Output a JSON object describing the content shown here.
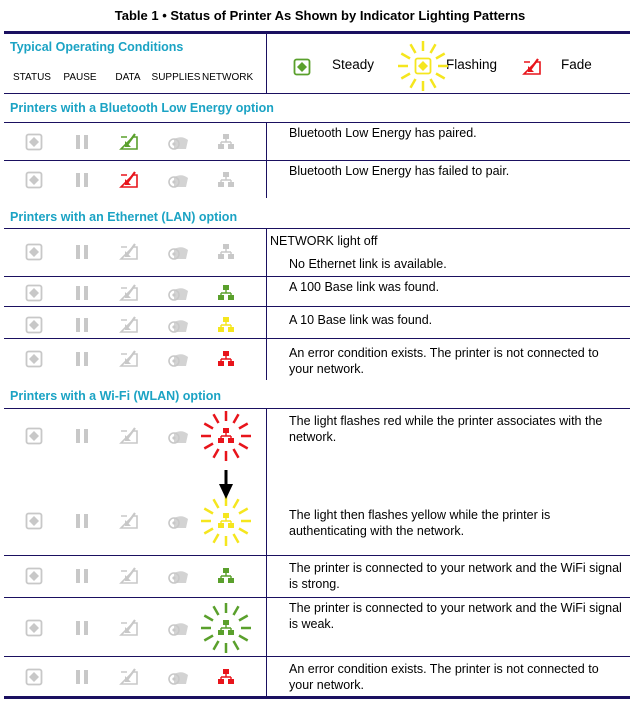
{
  "title": "Table 1 • Status of Printer As Shown by Indicator Lighting Patterns",
  "typical": {
    "heading": "Typical Operating Conditions",
    "columns": [
      "STATUS",
      "PAUSE",
      "DATA",
      "SUPPLIES",
      "NETWORK"
    ],
    "legend": [
      {
        "label": "Steady",
        "icon": "status-icon",
        "color": "#5aa02c",
        "flash": false
      },
      {
        "label": "Flashing",
        "icon": "status-icon",
        "color": "#f5e61e",
        "flash": true
      },
      {
        "label": "Fade",
        "icon": "data-icon",
        "color": "#e8141b",
        "flash": false
      }
    ]
  },
  "colors": {
    "off": "#c8c8c8",
    "green": "#5aa02c",
    "red": "#e8141b",
    "yellow": "#f5e61e",
    "accent": "#1ba3c4",
    "rule": "#1a1060"
  },
  "sections": [
    {
      "heading": "Printers with a Bluetooth Low Energy option"
    },
    {
      "heading": "Printers with an Ethernet (LAN) option"
    },
    {
      "heading": "Printers with a Wi-Fi (WLAN) option"
    }
  ],
  "rows": [
    {
      "data": "green",
      "network": "off",
      "flash": false,
      "text": "Bluetooth Low Energy has paired."
    },
    {
      "data": "red",
      "network": "off",
      "flash": false,
      "text": "Bluetooth Low Energy has failed to pair."
    },
    {
      "data": "off",
      "network": "off",
      "flash": false,
      "label": "NETWORK light off",
      "text": "No Ethernet link is available."
    },
    {
      "data": "off",
      "network": "green",
      "flash": false,
      "text": "A 100 Base link was found."
    },
    {
      "data": "off",
      "network": "yellow",
      "flash": false,
      "text": "A 10 Base link was found."
    },
    {
      "data": "off",
      "network": "red",
      "flash": false,
      "text": "An error condition exists. The printer is not connected to your network."
    },
    {
      "data": "off",
      "network": "red",
      "flash": true,
      "text": "The light flashes red while the printer associates with the network."
    },
    {
      "data": "off",
      "network": "yellow",
      "flash": true,
      "text": "The light then flashes yellow while the printer is authenticating with the network."
    },
    {
      "data": "off",
      "network": "green",
      "flash": false,
      "text": "The printer is connected to your network and the WiFi signal is strong."
    },
    {
      "data": "off",
      "network": "green",
      "flash": true,
      "text": "The printer is connected to your network and the WiFi signal is weak."
    },
    {
      "data": "off",
      "network": "red",
      "flash": false,
      "text": "An error condition exists. The printer is not connected to your network."
    }
  ]
}
